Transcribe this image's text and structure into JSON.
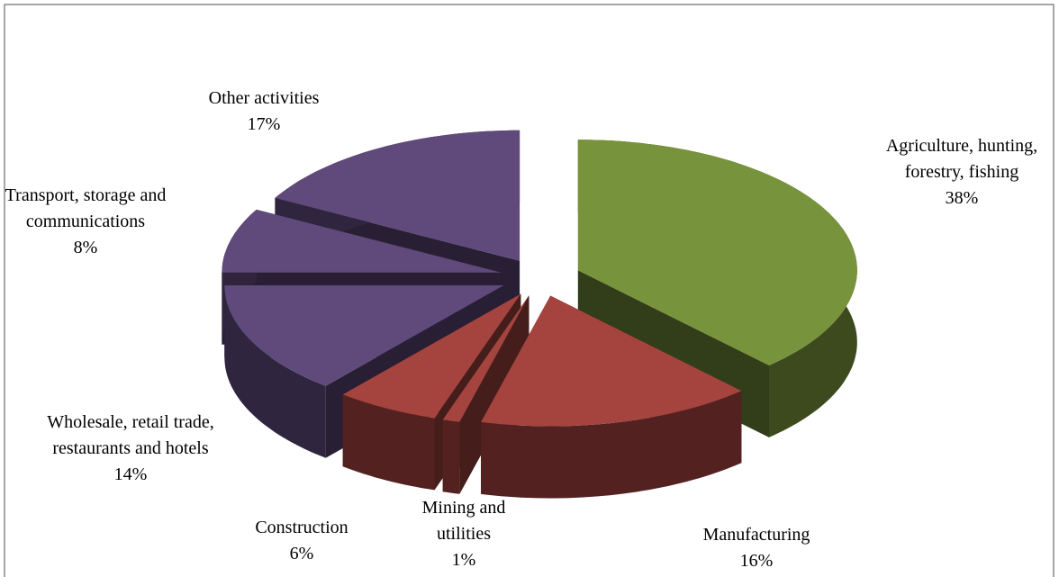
{
  "chart_data": {
    "type": "pie3d",
    "categories": [
      "Agriculture, hunting, forestry, fishing",
      "Manufacturing",
      "Mining and utilities",
      "Construction",
      "Wholesale, retail trade, restaurants and hotels",
      "Transport, storage and communications",
      "Other activities"
    ],
    "values": [
      38,
      16,
      1,
      6,
      14,
      8,
      17
    ],
    "value_labels": [
      "38%",
      "16%",
      "1%",
      "6%",
      "14%",
      "8%",
      "17%"
    ],
    "colors": [
      "#77933c",
      "#a5443f",
      "#a5443f",
      "#a5443f",
      "#5f4a7b",
      "#5f4a7b",
      "#5f4a7b"
    ]
  }
}
